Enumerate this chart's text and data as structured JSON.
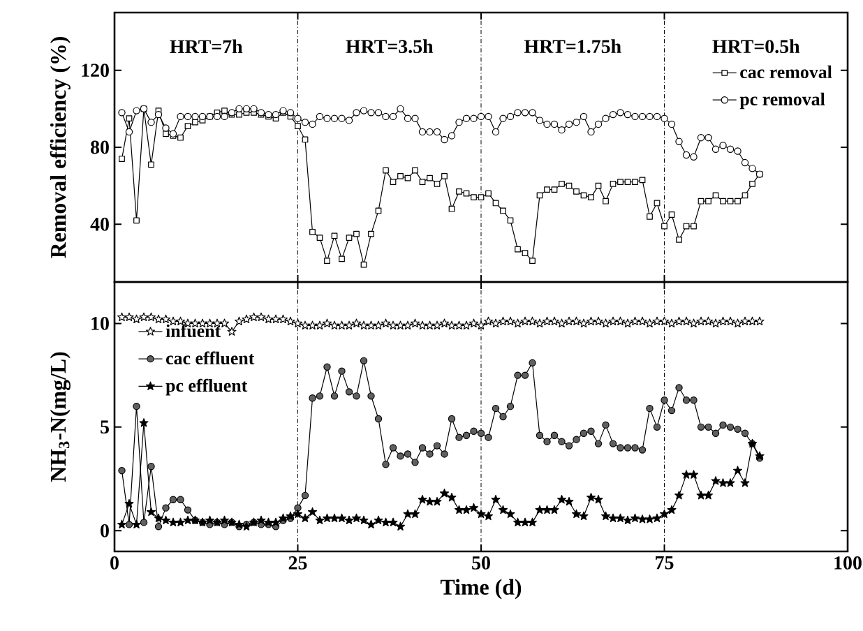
{
  "chart_data": [
    {
      "type": "line",
      "ylabel": "Removal efficiency (%)",
      "xlim": [
        0,
        100
      ],
      "xticks": [
        0,
        25,
        50,
        75,
        100
      ],
      "ylim": [
        10,
        150
      ],
      "yticks": [
        40,
        80,
        120
      ],
      "tick_labels": "y",
      "legend": "top right",
      "x": [
        1,
        2,
        3,
        4,
        5,
        6,
        7,
        8,
        9,
        10,
        11,
        12,
        13,
        14,
        15,
        16,
        17,
        18,
        19,
        20,
        21,
        22,
        23,
        24,
        25,
        26,
        27,
        28,
        29,
        30,
        31,
        32,
        33,
        34,
        35,
        36,
        37,
        38,
        39,
        40,
        41,
        42,
        43,
        44,
        45,
        46,
        47,
        48,
        49,
        50,
        51,
        52,
        53,
        54,
        55,
        56,
        57,
        58,
        59,
        60,
        61,
        62,
        63,
        64,
        65,
        66,
        67,
        68,
        69,
        70,
        71,
        72,
        73,
        74,
        75,
        76,
        77,
        78,
        79,
        80,
        81,
        82,
        83,
        84,
        85,
        86,
        87,
        88
      ],
      "series": [
        {
          "name": "cac removal",
          "color": "#ffffff",
          "marker": "square",
          "values": [
            74,
            95,
            42,
            100,
            71,
            99,
            87,
            86,
            85,
            91,
            93,
            94,
            96,
            98,
            99,
            97,
            97,
            98,
            98,
            97,
            96,
            95,
            98,
            96,
            91,
            84,
            36,
            33,
            21,
            34,
            22,
            33,
            35,
            19,
            35,
            47,
            68,
            62,
            65,
            64,
            68,
            62,
            64,
            61,
            65,
            48,
            57,
            56,
            54,
            54,
            56,
            51,
            47,
            42,
            27,
            25,
            21,
            55,
            58,
            58,
            61,
            60,
            57,
            55,
            54,
            60,
            52,
            61,
            62,
            62,
            62,
            63,
            44,
            51,
            39,
            45,
            32,
            39,
            39,
            52,
            52,
            55,
            52,
            52,
            52,
            55,
            61,
            66
          ]
        },
        {
          "name": "pc removal",
          "color": "#ffffff",
          "marker": "circle",
          "values": [
            98,
            88,
            99,
            100,
            93,
            97,
            90,
            87,
            96,
            96,
            96,
            96,
            96,
            96,
            96,
            98,
            100,
            100,
            100,
            98,
            97,
            97,
            99,
            98,
            95,
            93,
            92,
            96,
            95,
            95,
            95,
            94,
            98,
            99,
            98,
            98,
            96,
            96,
            100,
            95,
            95,
            88,
            88,
            88,
            84,
            86,
            93,
            95,
            95,
            96,
            96,
            88,
            95,
            96,
            98,
            98,
            98,
            94,
            92,
            92,
            89,
            92,
            93,
            96,
            88,
            92,
            95,
            97,
            98,
            97,
            96,
            96,
            96,
            96,
            95,
            92,
            83,
            76,
            75,
            85,
            85,
            79,
            81,
            79,
            78,
            72,
            69,
            66
          ]
        }
      ],
      "ref_lines": [
        {
          "axis": "x",
          "value": 25,
          "line_style": "dashed"
        },
        {
          "axis": "x",
          "value": 50,
          "line_style": "dashed"
        },
        {
          "axis": "x",
          "value": 75,
          "line_style": "dashed"
        }
      ],
      "annotations": [
        "HRT=7h",
        "HRT=3.5h",
        "HRT=1.75h",
        "HRT=0.5h"
      ]
    },
    {
      "type": "line",
      "xlabel": "Time (d)",
      "ylabel": "NH$_{3}$-N(mg/L)",
      "xlim": [
        0,
        100
      ],
      "xticks": [
        0,
        25,
        50,
        75,
        100
      ],
      "ylim": [
        -1,
        12
      ],
      "yticks": [
        0,
        5,
        10
      ],
      "legend": "top left",
      "x": [
        1,
        2,
        3,
        4,
        5,
        6,
        7,
        8,
        9,
        10,
        11,
        12,
        13,
        14,
        15,
        16,
        17,
        18,
        19,
        20,
        21,
        22,
        23,
        24,
        25,
        26,
        27,
        28,
        29,
        30,
        31,
        32,
        33,
        34,
        35,
        36,
        37,
        38,
        39,
        40,
        41,
        42,
        43,
        44,
        45,
        46,
        47,
        48,
        49,
        50,
        51,
        52,
        53,
        54,
        55,
        56,
        57,
        58,
        59,
        60,
        61,
        62,
        63,
        64,
        65,
        66,
        67,
        68,
        69,
        70,
        71,
        72,
        73,
        74,
        75,
        76,
        77,
        78,
        79,
        80,
        81,
        82,
        83,
        84,
        85,
        86,
        87,
        88
      ],
      "series": [
        {
          "name": "infuent",
          "color": "#ffffff",
          "marker": "star",
          "values": [
            10.3,
            10.3,
            10.2,
            10.3,
            10.3,
            10.2,
            10.2,
            10.1,
            10.1,
            10.0,
            10.0,
            10.0,
            10.0,
            10.0,
            10.0,
            9.6,
            10.1,
            10.2,
            10.3,
            10.3,
            10.2,
            10.2,
            10.2,
            10.1,
            10.0,
            9.9,
            9.9,
            9.9,
            10.0,
            9.9,
            9.9,
            9.9,
            10.0,
            9.9,
            9.9,
            9.9,
            10.0,
            9.9,
            9.9,
            9.9,
            10.0,
            9.9,
            9.9,
            9.9,
            10.0,
            9.9,
            9.9,
            9.9,
            10.0,
            9.9,
            10.1,
            10.0,
            10.1,
            10.1,
            10.0,
            10.1,
            10.1,
            10.0,
            10.1,
            10.1,
            10.0,
            10.1,
            10.1,
            10.0,
            10.1,
            10.1,
            10.0,
            10.1,
            10.1,
            10.0,
            10.1,
            10.1,
            10.0,
            10.1,
            10.1,
            10.0,
            10.1,
            10.1,
            10.0,
            10.1,
            10.1,
            10.0,
            10.1,
            10.1,
            10.0,
            10.1,
            10.1,
            10.1
          ]
        },
        {
          "name": "cac effluent",
          "color": "#606060",
          "marker": "circle",
          "values": [
            2.9,
            0.3,
            6.0,
            0.4,
            3.1,
            0.2,
            1.1,
            1.5,
            1.5,
            1.0,
            0.5,
            0.4,
            0.3,
            0.4,
            0.3,
            0.4,
            0.2,
            0.3,
            0.4,
            0.3,
            0.3,
            0.2,
            0.5,
            0.6,
            1.1,
            1.7,
            6.4,
            6.5,
            7.9,
            6.5,
            7.7,
            6.7,
            6.5,
            8.2,
            6.5,
            5.4,
            3.2,
            4.0,
            3.6,
            3.7,
            3.3,
            4.0,
            3.7,
            4.1,
            3.7,
            5.4,
            4.5,
            4.6,
            4.8,
            4.7,
            4.5,
            5.9,
            5.5,
            6.0,
            7.5,
            7.5,
            8.1,
            4.6,
            4.3,
            4.6,
            4.3,
            4.1,
            4.4,
            4.7,
            4.8,
            4.2,
            5.1,
            4.2,
            4.0,
            4.0,
            4.0,
            3.9,
            5.9,
            5.0,
            6.3,
            5.8,
            6.9,
            6.3,
            6.3,
            5.0,
            5.0,
            4.7,
            5.1,
            5.0,
            4.9,
            4.7,
            4.2,
            3.5
          ]
        },
        {
          "name": "pc effluent",
          "color": "#000000",
          "marker": "star",
          "values": [
            0.3,
            1.3,
            0.3,
            5.2,
            0.9,
            0.6,
            0.5,
            0.4,
            0.4,
            0.5,
            0.5,
            0.4,
            0.5,
            0.4,
            0.5,
            0.4,
            0.3,
            0.2,
            0.4,
            0.5,
            0.4,
            0.4,
            0.6,
            0.7,
            0.8,
            0.6,
            0.9,
            0.5,
            0.6,
            0.6,
            0.6,
            0.5,
            0.6,
            0.5,
            0.3,
            0.5,
            0.4,
            0.4,
            0.2,
            0.8,
            0.8,
            1.5,
            1.4,
            1.4,
            1.8,
            1.6,
            1.0,
            1.0,
            1.1,
            0.8,
            0.7,
            1.5,
            1.0,
            0.8,
            0.4,
            0.4,
            0.4,
            1.0,
            1.0,
            1.0,
            1.5,
            1.4,
            0.8,
            0.7,
            1.6,
            1.5,
            0.7,
            0.6,
            0.6,
            0.5,
            0.6,
            0.55,
            0.55,
            0.6,
            0.8,
            1.0,
            1.7,
            2.7,
            2.7,
            1.7,
            1.7,
            2.4,
            2.3,
            2.3,
            2.9,
            2.3,
            4.2,
            3.6
          ]
        }
      ],
      "ref_lines": [
        {
          "axis": "x",
          "value": 25,
          "line_style": "dashed"
        },
        {
          "axis": "x",
          "value": 50,
          "line_style": "dashed"
        },
        {
          "axis": "x",
          "value": 75,
          "line_style": "dashed"
        }
      ]
    }
  ]
}
